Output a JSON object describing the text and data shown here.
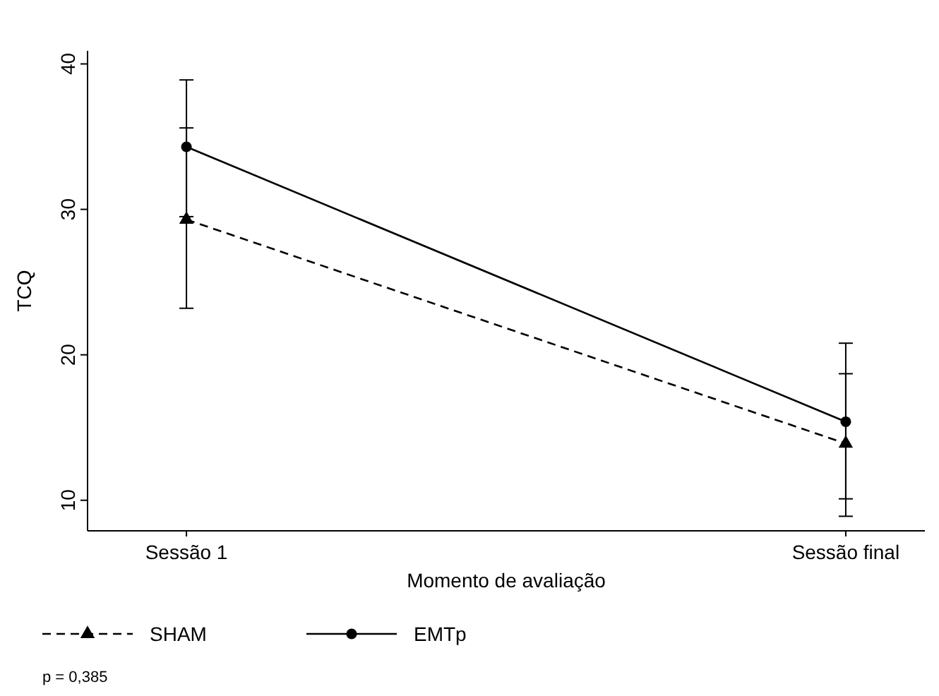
{
  "chart_data": {
    "type": "line",
    "xlabel": "Momento de avaliação",
    "ylabel": "TCQ",
    "categories": [
      "Sessão 1",
      "Sessão final"
    ],
    "ylim": [
      7.9,
      40.9
    ],
    "yticks": [
      10,
      20,
      30,
      40
    ],
    "grid": false,
    "legend": "bottom",
    "series": [
      {
        "name": "SHAM",
        "color": "#000000",
        "values": [
          29.3,
          13.9
        ],
        "errors": [
          [
            23.2,
            35.6
          ],
          [
            8.9,
            18.7
          ]
        ],
        "marker": "triangle",
        "line_style": "dashed"
      },
      {
        "name": "EMTp",
        "color": "#000000",
        "values": [
          34.3,
          15.4
        ],
        "errors": [
          [
            29.5,
            38.9
          ],
          [
            10.1,
            20.8
          ]
        ],
        "marker": "circle",
        "line_style": "solid"
      }
    ],
    "annotations": [
      "p = 0,385"
    ]
  }
}
